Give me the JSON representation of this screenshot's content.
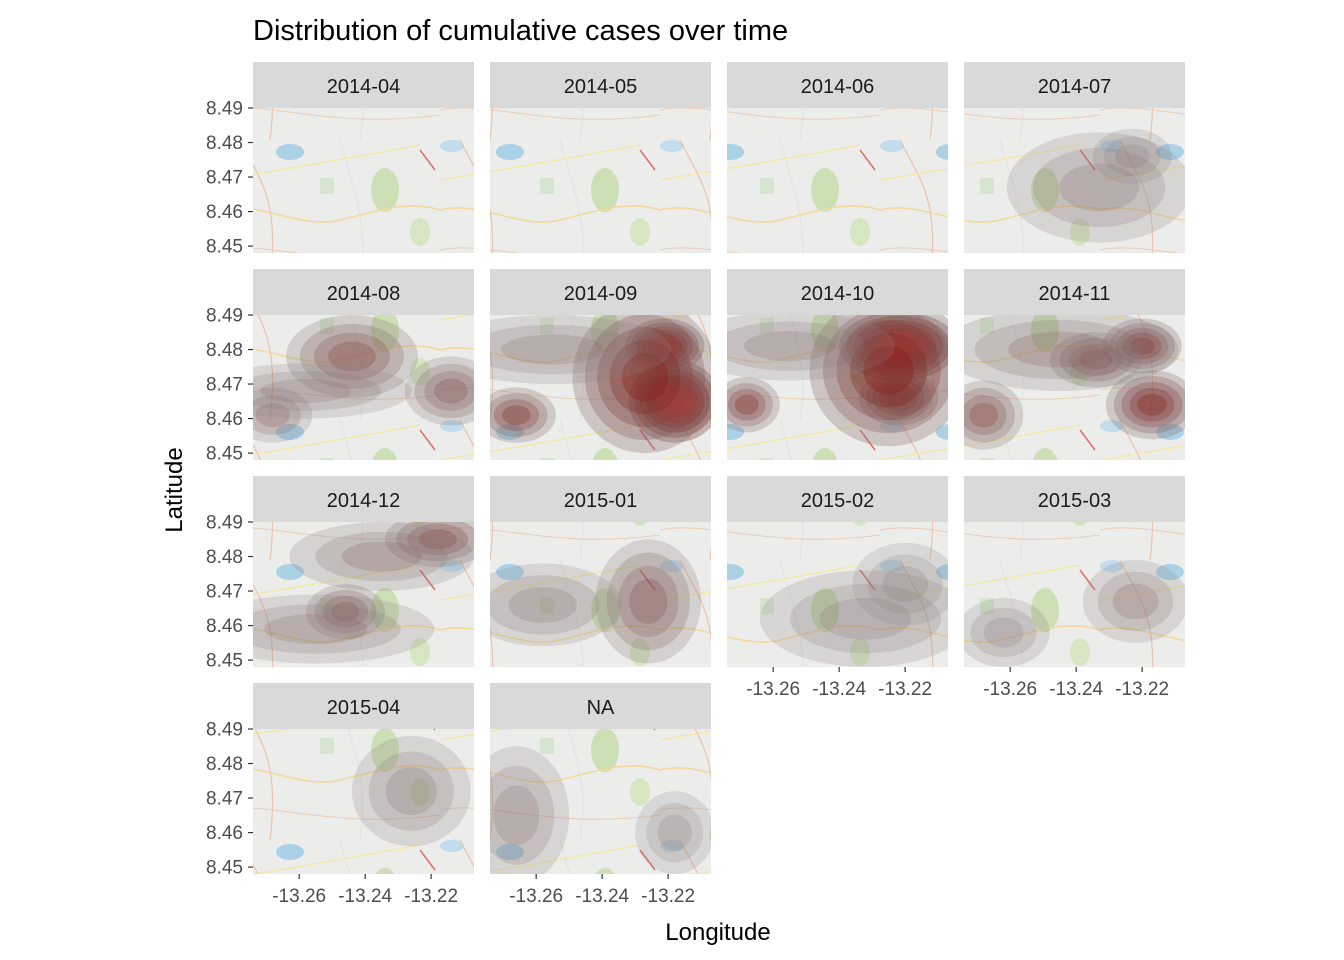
{
  "chart_data": {
    "type": "heatmap",
    "title": "Distribution of cumulative cases over time",
    "xlabel": "Longitude",
    "ylabel": "Latitude",
    "x_ticks": [
      "-13.26",
      "-13.24",
      "-13.22"
    ],
    "y_ticks": [
      "8.45",
      "8.46",
      "8.47",
      "8.48",
      "8.49"
    ],
    "xlim": [
      -13.274,
      -13.207
    ],
    "ylim": [
      8.448,
      8.49
    ],
    "legend": "none",
    "colors": {
      "low": "#8c8c8c",
      "high": "#ff0000",
      "strip": "#d9d9d9",
      "map_base": "#e8e8e8",
      "water": "#8ec3e0",
      "park": "#b9d39a"
    },
    "panels": [
      {
        "label": "2014-04",
        "hotspots": []
      },
      {
        "label": "2014-05",
        "hotspots": []
      },
      {
        "label": "2014-06",
        "hotspots": []
      },
      {
        "label": "2014-07",
        "hotspots": [
          {
            "lon": -13.233,
            "lat": 8.467,
            "sx": 0.014,
            "sy": 0.008,
            "level": 0.15
          },
          {
            "lon": -13.223,
            "lat": 8.476,
            "sx": 0.006,
            "sy": 0.004,
            "level": 0.12
          }
        ]
      },
      {
        "label": "2014-08",
        "hotspots": [
          {
            "lon": -13.244,
            "lat": 8.478,
            "sx": 0.01,
            "sy": 0.006,
            "level": 0.35
          },
          {
            "lon": -13.214,
            "lat": 8.468,
            "sx": 0.007,
            "sy": 0.005,
            "level": 0.3
          },
          {
            "lon": -13.268,
            "lat": 8.461,
            "sx": 0.006,
            "sy": 0.004,
            "level": 0.25
          },
          {
            "lon": -13.258,
            "lat": 8.468,
            "sx": 0.016,
            "sy": 0.004,
            "level": 0.15
          }
        ]
      },
      {
        "label": "2014-09",
        "hotspots": [
          {
            "lon": -13.218,
            "lat": 8.465,
            "sx": 0.007,
            "sy": 0.006,
            "level": 0.95
          },
          {
            "lon": -13.221,
            "lat": 8.481,
            "sx": 0.006,
            "sy": 0.004,
            "level": 0.8
          },
          {
            "lon": -13.227,
            "lat": 8.472,
            "sx": 0.011,
            "sy": 0.011,
            "level": 0.55
          },
          {
            "lon": -13.266,
            "lat": 8.461,
            "sx": 0.006,
            "sy": 0.004,
            "level": 0.45
          },
          {
            "lon": -13.255,
            "lat": 8.48,
            "sx": 0.018,
            "sy": 0.005,
            "level": 0.15
          }
        ]
      },
      {
        "label": "2014-10",
        "hotspots": [
          {
            "lon": -13.222,
            "lat": 8.481,
            "sx": 0.009,
            "sy": 0.005,
            "level": 1.0
          },
          {
            "lon": -13.222,
            "lat": 8.466,
            "sx": 0.006,
            "sy": 0.004,
            "level": 0.6
          },
          {
            "lon": -13.225,
            "lat": 8.474,
            "sx": 0.012,
            "sy": 0.011,
            "level": 0.55
          },
          {
            "lon": -13.268,
            "lat": 8.464,
            "sx": 0.005,
            "sy": 0.004,
            "level": 0.45
          },
          {
            "lon": -13.255,
            "lat": 8.481,
            "sx": 0.016,
            "sy": 0.005,
            "level": 0.15
          }
        ]
      },
      {
        "label": "2014-11",
        "hotspots": [
          {
            "lon": -13.217,
            "lat": 8.464,
            "sx": 0.007,
            "sy": 0.005,
            "level": 0.5
          },
          {
            "lon": -13.22,
            "lat": 8.481,
            "sx": 0.006,
            "sy": 0.004,
            "level": 0.5
          },
          {
            "lon": -13.234,
            "lat": 8.477,
            "sx": 0.007,
            "sy": 0.004,
            "level": 0.4
          },
          {
            "lon": -13.268,
            "lat": 8.461,
            "sx": 0.006,
            "sy": 0.005,
            "level": 0.35
          },
          {
            "lon": -13.245,
            "lat": 8.48,
            "sx": 0.018,
            "sy": 0.006,
            "level": 0.2
          }
        ]
      },
      {
        "label": "2014-12",
        "hotspots": [
          {
            "lon": -13.218,
            "lat": 8.485,
            "sx": 0.008,
            "sy": 0.004,
            "level": 0.4
          },
          {
            "lon": -13.246,
            "lat": 8.464,
            "sx": 0.006,
            "sy": 0.004,
            "level": 0.35
          },
          {
            "lon": -13.235,
            "lat": 8.48,
            "sx": 0.014,
            "sy": 0.005,
            "level": 0.2
          },
          {
            "lon": -13.255,
            "lat": 8.459,
            "sx": 0.018,
            "sy": 0.005,
            "level": 0.15
          }
        ]
      },
      {
        "label": "2015-01",
        "hotspots": [
          {
            "lon": -13.226,
            "lat": 8.467,
            "sx": 0.008,
            "sy": 0.009,
            "level": 0.3
          },
          {
            "lon": -13.258,
            "lat": 8.466,
            "sx": 0.012,
            "sy": 0.006,
            "level": 0.15
          }
        ]
      },
      {
        "label": "2015-02",
        "hotspots": [
          {
            "lon": -13.232,
            "lat": 8.462,
            "sx": 0.016,
            "sy": 0.007,
            "level": 0.12
          },
          {
            "lon": -13.22,
            "lat": 8.472,
            "sx": 0.008,
            "sy": 0.006,
            "level": 0.1
          }
        ]
      },
      {
        "label": "2015-03",
        "hotspots": [
          {
            "lon": -13.222,
            "lat": 8.467,
            "sx": 0.008,
            "sy": 0.006,
            "level": 0.18
          },
          {
            "lon": -13.262,
            "lat": 8.458,
            "sx": 0.007,
            "sy": 0.005,
            "level": 0.12
          }
        ]
      },
      {
        "label": "2015-04",
        "hotspots": [
          {
            "lon": -13.226,
            "lat": 8.472,
            "sx": 0.009,
            "sy": 0.008,
            "level": 0.15
          }
        ]
      },
      {
        "label": "NA",
        "hotspots": [
          {
            "lon": -13.266,
            "lat": 8.465,
            "sx": 0.008,
            "sy": 0.01,
            "level": 0.15
          },
          {
            "lon": -13.218,
            "lat": 8.46,
            "sx": 0.006,
            "sy": 0.006,
            "level": 0.1
          }
        ]
      }
    ]
  }
}
